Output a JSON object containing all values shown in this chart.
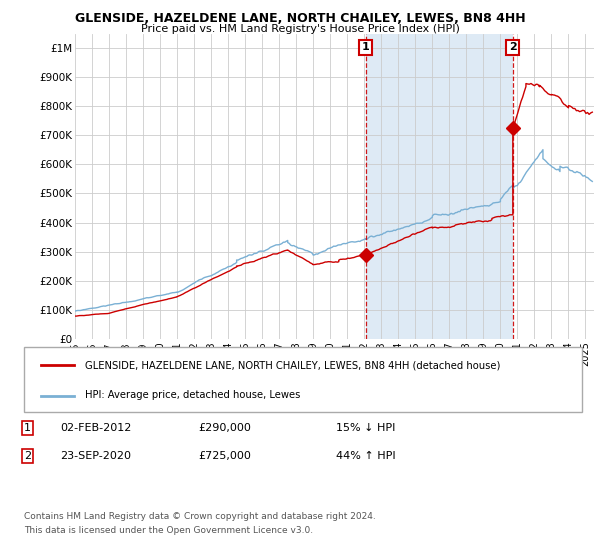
{
  "title": "GLENSIDE, HAZELDENE LANE, NORTH CHAILEY, LEWES, BN8 4HH",
  "subtitle": "Price paid vs. HM Land Registry's House Price Index (HPI)",
  "legend_line1": "GLENSIDE, HAZELDENE LANE, NORTH CHAILEY, LEWES, BN8 4HH (detached house)",
  "legend_line2": "HPI: Average price, detached house, Lewes",
  "annotation1": {
    "label": "1",
    "date": "02-FEB-2012",
    "price": "£290,000",
    "pct": "15% ↓ HPI",
    "x_year": 2012.09
  },
  "annotation2": {
    "label": "2",
    "date": "23-SEP-2020",
    "price": "£725,000",
    "pct": "44% ↑ HPI",
    "x_year": 2020.73
  },
  "ann1_price_y": 290000,
  "ann2_price_y": 725000,
  "footer1": "Contains HM Land Registry data © Crown copyright and database right 2024.",
  "footer2": "This data is licensed under the Open Government Licence v3.0.",
  "hpi_color": "#7ab0d4",
  "price_color": "#cc0000",
  "shade_color": "#deeaf5",
  "annotation_line_color": "#cc0000",
  "grid_color": "#cccccc",
  "yticks": [
    0,
    100000,
    200000,
    300000,
    400000,
    500000,
    600000,
    700000,
    800000,
    900000,
    1000000
  ],
  "ytick_labels": [
    "£0",
    "£100K",
    "£200K",
    "£300K",
    "£400K",
    "£500K",
    "£600K",
    "£700K",
    "£800K",
    "£900K",
    "£1M"
  ],
  "ylim_max": 1050000,
  "xlim_min": 1995.0,
  "xlim_max": 2025.5,
  "xtick_years": [
    1995,
    1996,
    1997,
    1998,
    1999,
    2000,
    2001,
    2002,
    2003,
    2004,
    2005,
    2006,
    2007,
    2008,
    2009,
    2010,
    2011,
    2012,
    2013,
    2014,
    2015,
    2016,
    2017,
    2018,
    2019,
    2020,
    2021,
    2022,
    2023,
    2024,
    2025
  ]
}
